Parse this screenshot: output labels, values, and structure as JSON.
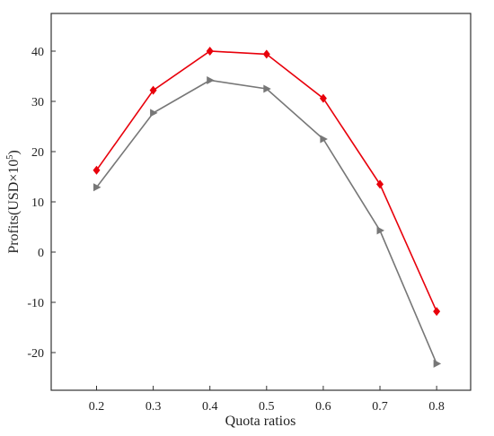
{
  "chart_data": {
    "type": "line",
    "title": "",
    "xlabel": "Quota ratios",
    "ylabel": {
      "before": "Profits(USD×10",
      "superscript": "5",
      "after": ")"
    },
    "xlim": [
      0.12,
      0.86
    ],
    "ylim": [
      -27.5,
      47.5
    ],
    "xticks": [
      "0.2",
      "0.3",
      "0.4",
      "0.5",
      "0.6",
      "0.7",
      "0.8"
    ],
    "yticks": [
      "-20",
      "-10",
      "0",
      "10",
      "20",
      "30",
      "40"
    ],
    "grid": false,
    "legend": "none",
    "x": [
      0.2,
      0.3,
      0.4,
      0.5,
      0.6,
      0.7,
      0.8
    ],
    "series": [
      {
        "color": "#e8000b",
        "marker": "diamond",
        "values": [
          16.3,
          32.2,
          40.0,
          39.4,
          30.6,
          13.5,
          -11.8
        ]
      },
      {
        "color": "#777777",
        "marker": "triangle-right",
        "values": [
          12.9,
          27.7,
          34.2,
          32.5,
          22.5,
          4.3,
          -22.2
        ]
      }
    ]
  }
}
